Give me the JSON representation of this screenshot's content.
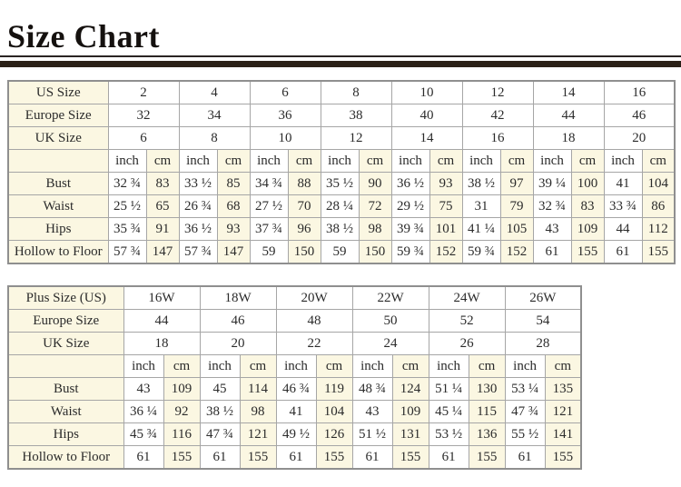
{
  "page": {
    "title": "Size Chart"
  },
  "colors": {
    "accent_cream": "#fbf7e2",
    "divider_bar": "#2b2118",
    "table_border": "#a6a6a6"
  },
  "standard_table": {
    "size_rows": [
      {
        "label": "US Size",
        "values": [
          "2",
          "4",
          "6",
          "8",
          "10",
          "12",
          "14",
          "16"
        ]
      },
      {
        "label": "Europe Size",
        "values": [
          "32",
          "34",
          "36",
          "38",
          "40",
          "42",
          "44",
          "46"
        ]
      },
      {
        "label": "UK Size",
        "values": [
          "6",
          "8",
          "10",
          "12",
          "14",
          "16",
          "18",
          "20"
        ]
      }
    ],
    "unit_headers": [
      "inch",
      "cm"
    ],
    "measurement_rows": [
      {
        "label": "Bust",
        "values": [
          "32 ¾",
          "83",
          "33 ½",
          "85",
          "34 ¾",
          "88",
          "35 ½",
          "90",
          "36 ½",
          "93",
          "38 ½",
          "97",
          "39 ¼",
          "100",
          "41",
          "104"
        ]
      },
      {
        "label": "Waist",
        "values": [
          "25 ½",
          "65",
          "26 ¾",
          "68",
          "27 ½",
          "70",
          "28 ¼",
          "72",
          "29 ½",
          "75",
          "31",
          "79",
          "32 ¾",
          "83",
          "33 ¾",
          "86"
        ]
      },
      {
        "label": "Hips",
        "values": [
          "35 ¾",
          "91",
          "36 ½",
          "93",
          "37 ¾",
          "96",
          "38 ½",
          "98",
          "39 ¾",
          "101",
          "41 ¼",
          "105",
          "43",
          "109",
          "44",
          "112"
        ]
      },
      {
        "label": "Hollow to Floor",
        "values": [
          "57 ¾",
          "147",
          "57 ¾",
          "147",
          "59",
          "150",
          "59",
          "150",
          "59 ¾",
          "152",
          "59 ¾",
          "152",
          "61",
          "155",
          "61",
          "155"
        ]
      }
    ]
  },
  "plus_table": {
    "size_rows": [
      {
        "label": "Plus Size (US)",
        "values": [
          "16W",
          "18W",
          "20W",
          "22W",
          "24W",
          "26W"
        ]
      },
      {
        "label": "Europe Size",
        "values": [
          "44",
          "46",
          "48",
          "50",
          "52",
          "54"
        ]
      },
      {
        "label": "UK Size",
        "values": [
          "18",
          "20",
          "22",
          "24",
          "26",
          "28"
        ]
      }
    ],
    "unit_headers": [
      "inch",
      "cm"
    ],
    "measurement_rows": [
      {
        "label": "Bust",
        "values": [
          "43",
          "109",
          "45",
          "114",
          "46 ¾",
          "119",
          "48 ¾",
          "124",
          "51 ¼",
          "130",
          "53 ¼",
          "135"
        ]
      },
      {
        "label": "Waist",
        "values": [
          "36 ¼",
          "92",
          "38 ½",
          "98",
          "41",
          "104",
          "43",
          "109",
          "45 ¼",
          "115",
          "47 ¾",
          "121"
        ]
      },
      {
        "label": "Hips",
        "values": [
          "45 ¾",
          "116",
          "47 ¾",
          "121",
          "49 ½",
          "126",
          "51 ½",
          "131",
          "53 ½",
          "136",
          "55 ½",
          "141"
        ]
      },
      {
        "label": "Hollow to Floor",
        "values": [
          "61",
          "155",
          "61",
          "155",
          "61",
          "155",
          "61",
          "155",
          "61",
          "155",
          "61",
          "155"
        ]
      }
    ]
  }
}
